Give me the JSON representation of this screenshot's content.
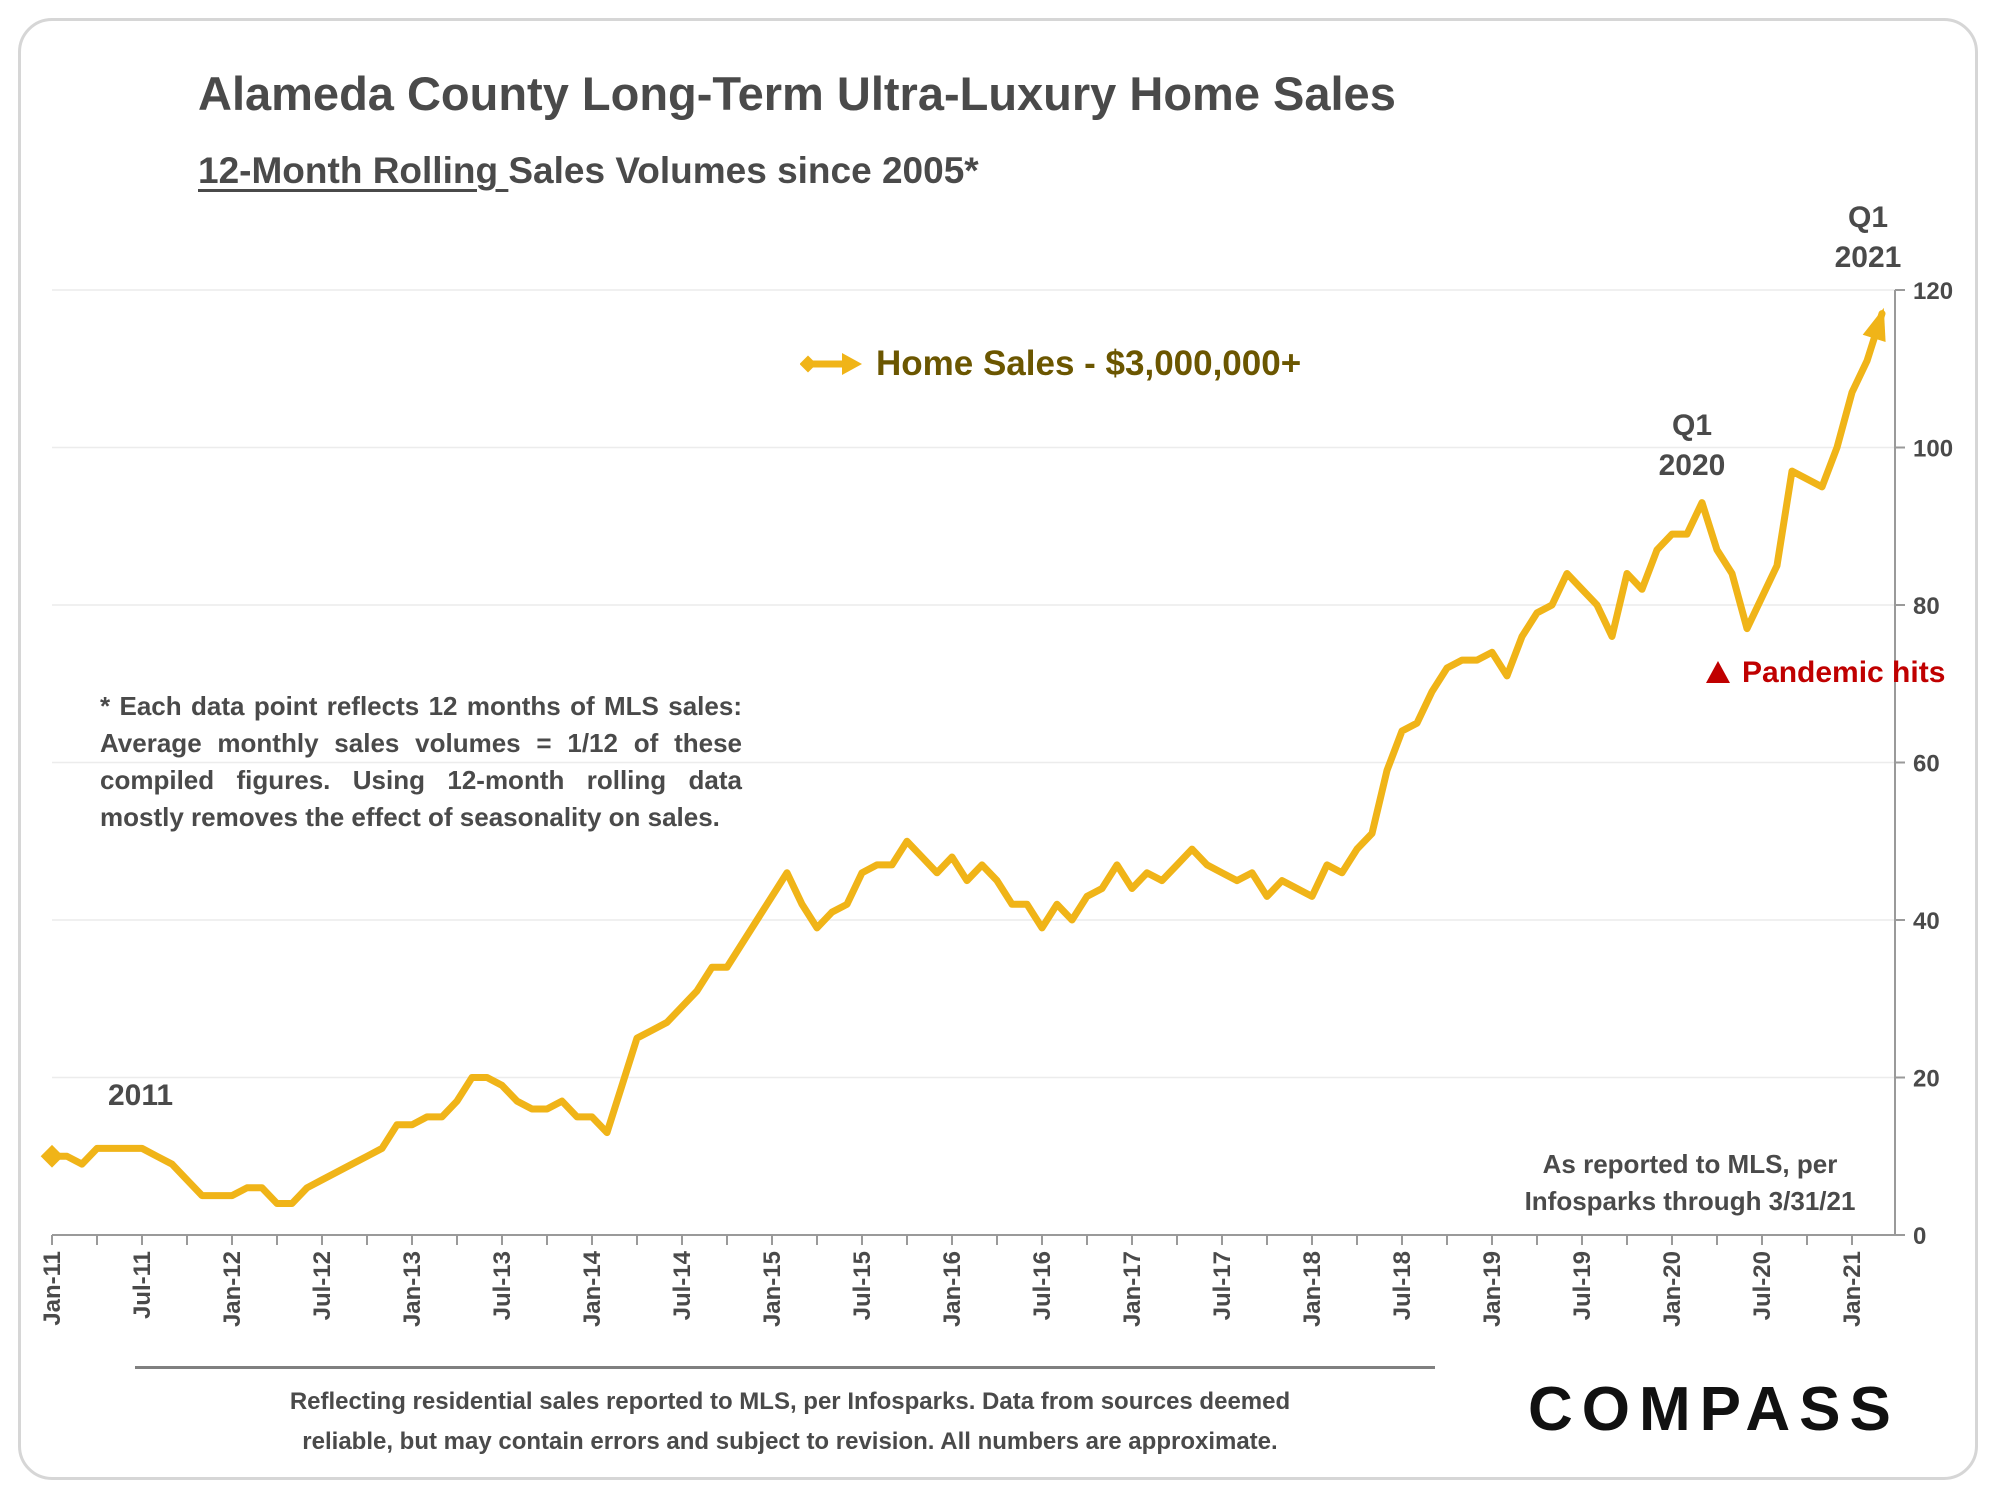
{
  "title": "Alameda County Long-Term Ultra-Luxury Home Sales",
  "subtitle_underlined": "12-Month Rolling ",
  "subtitle_rest": "Sales Volumes since 2005*",
  "note": "* Each data point reflects 12 months of MLS sales: Average monthly sales volumes = 1/12 of these compiled figures. Using 12-month rolling data mostly removes the effect of seasonality on sales.",
  "annotations": {
    "year_2011": "2011",
    "q1_2020_line1": "Q1",
    "q1_2020_line2": "2020",
    "q1_2021_line1": "Q1",
    "q1_2021_line2": "2021",
    "pandemic": "Pandemic hits"
  },
  "source_note_line1": "As reported to MLS, per",
  "source_note_line2": "Infosparks through 3/31/21",
  "footer_line1": "Reflecting residential sales reported to MLS, per Infosparks. Data from sources deemed",
  "footer_line2": "reliable, but may contain errors and subject to revision. All numbers are approximate.",
  "logo": "COMPASS",
  "colors": {
    "series": "#f0b418",
    "legend_text": "#6b5600",
    "pandemic": "#c00000",
    "text": "#4a4a4a"
  },
  "chart_data": {
    "type": "line",
    "title": "Alameda County Long-Term Ultra-Luxury Home Sales",
    "xlabel": "",
    "ylabel": "",
    "ylim": [
      0,
      120
    ],
    "yticks": [
      0,
      20,
      40,
      60,
      80,
      100,
      120
    ],
    "y_axis_position": "right",
    "grid": true,
    "legend_position": "top-center",
    "x_start": "Jan-11",
    "x_tick_labels": [
      "Jan-11",
      "Jul-11",
      "Jan-12",
      "Jul-12",
      "Jan-13",
      "Jul-13",
      "Jan-14",
      "Jul-14",
      "Jan-15",
      "Jul-15",
      "Jan-16",
      "Jul-16",
      "Jan-17",
      "Jul-17",
      "Jan-18",
      "Jul-18",
      "Jan-19",
      "Jul-19",
      "Jan-20",
      "Jul-20",
      "Jan-21"
    ],
    "series": [
      {
        "name": "Home Sales - $3,000,000+",
        "values": [
          10,
          10,
          9,
          11,
          11,
          11,
          11,
          10,
          9,
          7,
          5,
          5,
          5,
          6,
          6,
          4,
          4,
          6,
          7,
          8,
          9,
          10,
          11,
          14,
          14,
          15,
          15,
          17,
          20,
          20,
          19,
          17,
          16,
          16,
          17,
          15,
          15,
          13,
          19,
          25,
          26,
          27,
          29,
          31,
          34,
          34,
          37,
          40,
          43,
          46,
          42,
          39,
          41,
          42,
          46,
          47,
          47,
          50,
          48,
          46,
          48,
          45,
          47,
          45,
          42,
          42,
          39,
          42,
          40,
          43,
          44,
          47,
          44,
          46,
          45,
          47,
          49,
          47,
          46,
          45,
          46,
          43,
          45,
          44,
          43,
          47,
          46,
          49,
          51,
          59,
          64,
          65,
          69,
          72,
          73,
          73,
          74,
          71,
          76,
          79,
          80,
          84,
          82,
          80,
          76,
          84,
          82,
          87,
          89,
          89,
          93,
          87,
          84,
          77,
          81,
          85,
          97,
          96,
          95,
          100,
          107,
          111,
          117
        ]
      }
    ]
  }
}
